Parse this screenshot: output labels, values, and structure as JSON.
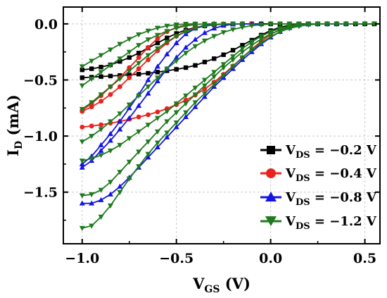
{
  "chart_data": {
    "type": "line",
    "xlabel": {
      "main": "V",
      "sub": "GS",
      "unit": "(V)"
    },
    "ylabel": {
      "main": "I",
      "sub": "D",
      "unit": "(mA)"
    },
    "xlim": [
      -1.1,
      0.58
    ],
    "ylim": [
      -1.96,
      0.15
    ],
    "xticks": [
      -1.0,
      -0.5,
      0.0,
      0.5
    ],
    "xtick_labels": [
      "−1.0",
      "−0.5",
      "0.0",
      "0.5"
    ],
    "yticks": [
      0.0,
      -0.5,
      -1.0,
      -1.5
    ],
    "ytick_labels": [
      "0.0",
      "−0.5",
      "−1.0",
      "−1.5"
    ],
    "grid": true,
    "legend_position": "bottom-right",
    "legend": [
      {
        "label_main": "V",
        "label_sub": "DS",
        "label_value": " = −0.2 V"
      },
      {
        "label_main": "V",
        "label_sub": "DS",
        "label_value": " = −0.4 V"
      },
      {
        "label_main": "V",
        "label_sub": "DS",
        "label_value": " = −0.8 V"
      },
      {
        "label_main": "V",
        "label_sub": "DS",
        "label_value": " = −1.2 V"
      }
    ],
    "series": [
      {
        "color": "#000000",
        "marker": "square",
        "curves": [
          {
            "x": [
              -1.0,
              -0.95,
              -0.9,
              -0.85,
              -0.8,
              -0.75,
              -0.7,
              -0.65,
              -0.6,
              -0.55,
              -0.5,
              -0.45,
              -0.4,
              -0.35,
              -0.3,
              -0.25,
              -0.2,
              -0.15,
              -0.1,
              -0.05,
              0.0,
              0.05,
              0.1,
              0.15,
              0.2,
              0.25,
              0.3,
              0.35,
              0.4,
              0.45,
              0.5,
              0.55
            ],
            "y": [
              -0.48,
              -0.475,
              -0.47,
              -0.465,
              -0.46,
              -0.455,
              -0.448,
              -0.44,
              -0.43,
              -0.418,
              -0.405,
              -0.39,
              -0.37,
              -0.34,
              -0.31,
              -0.275,
              -0.235,
              -0.19,
              -0.145,
              -0.1,
              -0.06,
              -0.03,
              -0.012,
              -0.004,
              0.0,
              0.0,
              0.0,
              0.0,
              0.0,
              0.0,
              0.0,
              0.0
            ]
          },
          {
            "x": [
              -1.0,
              -0.95,
              -0.9,
              -0.85,
              -0.8,
              -0.75,
              -0.7,
              -0.65,
              -0.6,
              -0.55,
              -0.5,
              -0.45,
              -0.4,
              -0.35,
              -0.3,
              -0.25,
              -0.2,
              -0.15,
              -0.1,
              -0.05,
              0.0,
              0.05,
              0.1,
              0.15,
              0.2,
              0.25,
              0.3,
              0.35,
              0.4,
              0.45,
              0.5,
              0.55
            ],
            "y": [
              -0.41,
              -0.4,
              -0.385,
              -0.365,
              -0.335,
              -0.3,
              -0.26,
              -0.215,
              -0.17,
              -0.125,
              -0.085,
              -0.055,
              -0.032,
              -0.018,
              -0.008,
              -0.003,
              0.0,
              0.0,
              0.0,
              0.0,
              0.0,
              0.0,
              0.0,
              0.0,
              0.0,
              0.0,
              0.0,
              0.0,
              0.0,
              0.0,
              0.0,
              0.0
            ]
          }
        ]
      },
      {
        "color": "#e8231e",
        "marker": "circle",
        "curves": [
          {
            "x": [
              -1.0,
              -0.95,
              -0.9,
              -0.85,
              -0.8,
              -0.75,
              -0.7,
              -0.65,
              -0.6,
              -0.55,
              -0.5,
              -0.45,
              -0.4,
              -0.35,
              -0.3,
              -0.25,
              -0.2,
              -0.15,
              -0.1,
              -0.05,
              0.0,
              0.05,
              0.1,
              0.15,
              0.2,
              0.25,
              0.3
            ],
            "y": [
              -0.92,
              -0.91,
              -0.9,
              -0.885,
              -0.87,
              -0.85,
              -0.83,
              -0.81,
              -0.785,
              -0.755,
              -0.72,
              -0.68,
              -0.635,
              -0.58,
              -0.52,
              -0.45,
              -0.375,
              -0.3,
              -0.225,
              -0.155,
              -0.095,
              -0.05,
              -0.02,
              -0.006,
              0.0,
              0.0,
              0.0
            ]
          },
          {
            "x": [
              -1.0,
              -0.95,
              -0.9,
              -0.85,
              -0.8,
              -0.75,
              -0.7,
              -0.65,
              -0.6,
              -0.55,
              -0.5,
              -0.45,
              -0.4,
              -0.35,
              -0.3,
              -0.25,
              -0.2,
              -0.15,
              -0.1
            ],
            "y": [
              -0.78,
              -0.74,
              -0.69,
              -0.63,
              -0.56,
              -0.48,
              -0.4,
              -0.32,
              -0.24,
              -0.17,
              -0.11,
              -0.065,
              -0.035,
              -0.015,
              -0.005,
              0.0,
              0.0,
              0.0,
              0.0
            ]
          },
          {
            "x": [
              -1.0,
              -0.95,
              -0.9,
              -0.85,
              -0.8,
              -0.75,
              -0.7,
              -0.65,
              -0.6,
              -0.55,
              -0.5,
              -0.45,
              -0.4
            ],
            "y": [
              -0.77,
              -0.71,
              -0.64,
              -0.56,
              -0.48,
              -0.39,
              -0.3,
              -0.21,
              -0.13,
              -0.07,
              -0.03,
              -0.01,
              0.0
            ]
          }
        ]
      },
      {
        "color": "#1414e6",
        "marker": "triangle-up",
        "curves": [
          {
            "x": [
              -1.0,
              -0.95,
              -0.9,
              -0.85,
              -0.8,
              -0.75,
              -0.7,
              -0.65,
              -0.6,
              -0.55,
              -0.5,
              -0.45,
              -0.4,
              -0.35,
              -0.3,
              -0.25,
              -0.2,
              -0.15,
              -0.1,
              -0.05,
              0.0,
              0.05,
              0.1,
              0.15,
              0.2,
              0.25,
              0.3,
              0.35,
              0.4
            ],
            "y": [
              -1.6,
              -1.6,
              -1.57,
              -1.52,
              -1.45,
              -1.37,
              -1.28,
              -1.19,
              -1.1,
              -1.01,
              -0.92,
              -0.83,
              -0.74,
              -0.65,
              -0.56,
              -0.48,
              -0.4,
              -0.32,
              -0.25,
              -0.18,
              -0.12,
              -0.07,
              -0.035,
              -0.012,
              -0.003,
              0.0,
              0.0,
              0.0,
              0.0
            ]
          },
          {
            "x": [
              -1.0,
              -0.95,
              -0.9,
              -0.85,
              -0.8,
              -0.75,
              -0.7,
              -0.65,
              -0.6,
              -0.55,
              -0.5,
              -0.45,
              -0.4,
              -0.35,
              -0.3,
              -0.25,
              -0.2,
              -0.15,
              -0.1,
              -0.05
            ],
            "y": [
              -1.28,
              -1.22,
              -1.13,
              -1.04,
              -0.94,
              -0.84,
              -0.73,
              -0.62,
              -0.51,
              -0.4,
              -0.3,
              -0.21,
              -0.14,
              -0.08,
              -0.04,
              -0.015,
              -0.004,
              0.0,
              0.0,
              0.0
            ]
          },
          {
            "x": [
              -1.0,
              -0.95,
              -0.9,
              -0.85,
              -0.8,
              -0.75,
              -0.7,
              -0.65,
              -0.6,
              -0.55,
              -0.5,
              -0.45,
              -0.4,
              -0.35,
              -0.3
            ],
            "y": [
              -1.25,
              -1.18,
              -1.08,
              -0.98,
              -0.87,
              -0.75,
              -0.63,
              -0.5,
              -0.38,
              -0.27,
              -0.17,
              -0.09,
              -0.04,
              -0.012,
              0.0
            ]
          }
        ]
      },
      {
        "color": "#1e7a1e",
        "marker": "triangle-down",
        "curves": [
          {
            "x": [
              -1.0,
              -0.95,
              -0.9,
              -0.85,
              -0.8,
              -0.75,
              -0.7,
              -0.65,
              -0.6,
              -0.55,
              -0.5,
              -0.45,
              -0.4,
              -0.35,
              -0.3,
              -0.25,
              -0.2,
              -0.15,
              -0.1,
              -0.05,
              0.0,
              0.05,
              0.1,
              0.15,
              0.2,
              0.25,
              0.3,
              0.35,
              0.4,
              0.45,
              0.5,
              0.55
            ],
            "y": [
              -1.82,
              -1.8,
              -1.72,
              -1.62,
              -1.5,
              -1.38,
              -1.27,
              -1.16,
              -1.06,
              -0.97,
              -0.88,
              -0.79,
              -0.7,
              -0.62,
              -0.54,
              -0.46,
              -0.38,
              -0.3,
              -0.23,
              -0.17,
              -0.115,
              -0.07,
              -0.04,
              -0.02,
              -0.008,
              -0.002,
              0.0,
              0.0,
              0.0,
              0.0,
              0.0,
              0.0
            ]
          },
          {
            "x": [
              -1.0,
              -0.95,
              -0.9,
              -0.85,
              -0.8,
              -0.75,
              -0.7,
              -0.65,
              -0.6,
              -0.55,
              -0.5,
              -0.45,
              -0.4,
              -0.35,
              -0.3,
              -0.25,
              -0.2,
              -0.15,
              -0.1,
              -0.05,
              0.0,
              0.05,
              0.1,
              0.15,
              0.2,
              0.25,
              0.3,
              0.35,
              0.4
            ],
            "y": [
              -1.53,
              -1.52,
              -1.48,
              -1.41,
              -1.32,
              -1.23,
              -1.14,
              -1.05,
              -0.96,
              -0.87,
              -0.79,
              -0.71,
              -0.63,
              -0.55,
              -0.47,
              -0.39,
              -0.32,
              -0.25,
              -0.19,
              -0.135,
              -0.09,
              -0.055,
              -0.03,
              -0.014,
              -0.005,
              0.0,
              0.0,
              0.0,
              0.0
            ]
          },
          {
            "x": [
              -1.0,
              -0.95,
              -0.9,
              -0.85,
              -0.8,
              -0.75,
              -0.7,
              -0.65,
              -0.6,
              -0.55,
              -0.5,
              -0.45,
              -0.4,
              -0.35,
              -0.3,
              -0.25,
              -0.2,
              -0.15,
              -0.1,
              -0.05,
              0.0,
              0.05,
              0.1,
              0.15,
              0.2,
              0.25,
              0.3
            ],
            "y": [
              -1.22,
              -1.2,
              -1.17,
              -1.13,
              -1.08,
              -1.02,
              -0.96,
              -0.9,
              -0.84,
              -0.78,
              -0.71,
              -0.64,
              -0.57,
              -0.5,
              -0.43,
              -0.36,
              -0.29,
              -0.22,
              -0.16,
              -0.11,
              -0.07,
              -0.04,
              -0.02,
              -0.008,
              -0.002,
              0.0,
              0.0
            ]
          },
          {
            "x": [
              -1.0,
              -0.95,
              -0.9,
              -0.85,
              -0.8,
              -0.75,
              -0.7,
              -0.65,
              -0.6,
              -0.55,
              -0.5,
              -0.45,
              -0.4,
              -0.35,
              -0.3,
              -0.25,
              -0.2,
              -0.15,
              -0.1,
              -0.05,
              0.0,
              0.05,
              0.1,
              0.15
            ],
            "y": [
              -1.05,
              -1.0,
              -0.94,
              -0.87,
              -0.8,
              -0.72,
              -0.64,
              -0.56,
              -0.48,
              -0.4,
              -0.33,
              -0.26,
              -0.2,
              -0.15,
              -0.11,
              -0.075,
              -0.05,
              -0.03,
              -0.016,
              -0.007,
              -0.002,
              0.0,
              0.0,
              0.0
            ]
          },
          {
            "x": [
              -1.0,
              -0.95,
              -0.9,
              -0.85,
              -0.8,
              -0.75,
              -0.7,
              -0.65,
              -0.6,
              -0.55,
              -0.5,
              -0.45,
              -0.4,
              -0.35,
              -0.3,
              -0.25,
              -0.2,
              -0.15
            ],
            "y": [
              -0.76,
              -0.7,
              -0.63,
              -0.56,
              -0.49,
              -0.42,
              -0.35,
              -0.28,
              -0.22,
              -0.16,
              -0.11,
              -0.07,
              -0.04,
              -0.02,
              -0.008,
              -0.002,
              0.0,
              0.0
            ]
          },
          {
            "x": [
              -1.0,
              -0.95,
              -0.9,
              -0.85,
              -0.8,
              -0.75,
              -0.7,
              -0.65,
              -0.6,
              -0.55,
              -0.5,
              -0.45,
              -0.4,
              -0.35,
              -0.3
            ],
            "y": [
              -0.55,
              -0.49,
              -0.43,
              -0.37,
              -0.31,
              -0.25,
              -0.19,
              -0.14,
              -0.1,
              -0.065,
              -0.038,
              -0.018,
              -0.006,
              0.0,
              0.0
            ]
          },
          {
            "x": [
              -1.0,
              -0.95,
              -0.9,
              -0.85,
              -0.8,
              -0.75,
              -0.7,
              -0.65,
              -0.6,
              -0.55,
              -0.5,
              -0.45,
              -0.4
            ],
            "y": [
              -0.38,
              -0.33,
              -0.28,
              -0.23,
              -0.18,
              -0.135,
              -0.095,
              -0.062,
              -0.036,
              -0.018,
              -0.007,
              -0.001,
              0.0
            ]
          }
        ]
      }
    ]
  }
}
